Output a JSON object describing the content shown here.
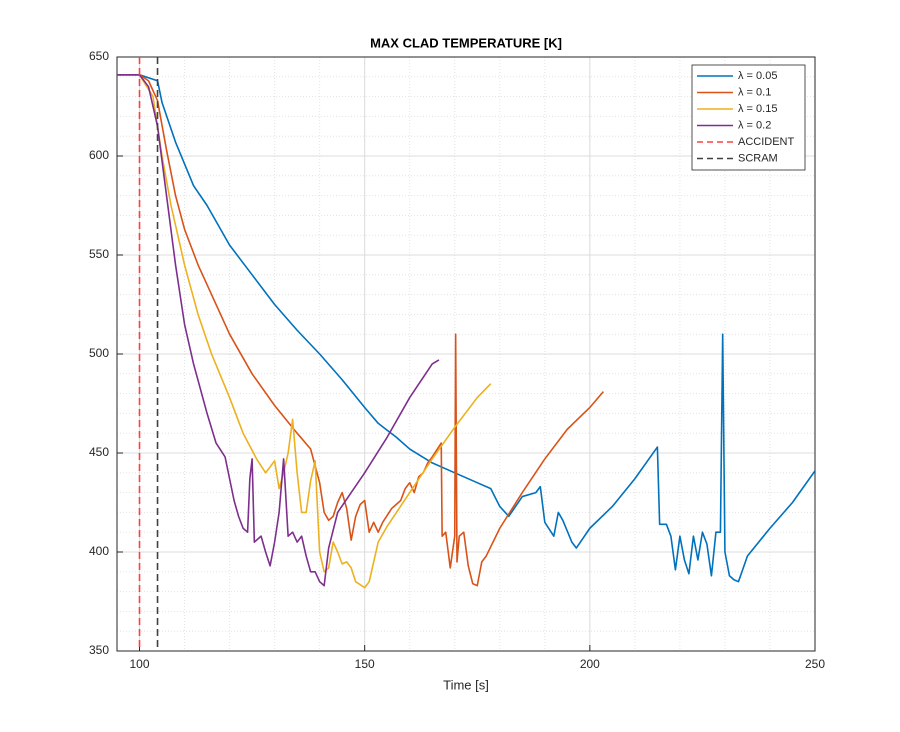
{
  "chart_data": {
    "type": "line",
    "title": "MAX CLAD TEMPERATURE [K]",
    "xlabel": "Time [s]",
    "xlim": [
      95,
      250
    ],
    "xticks": [
      100,
      150,
      200,
      250
    ],
    "ylim": [
      350,
      650
    ],
    "yticks": [
      350,
      400,
      450,
      500,
      550,
      600,
      650
    ],
    "grid": true,
    "minor_grid": true,
    "legend": "top-right",
    "series": [
      {
        "name": "λ = 0.05",
        "color": "#0072bd",
        "x": [
          95,
          100,
          104,
          105,
          108,
          112,
          115,
          120,
          125,
          130,
          135,
          140,
          145,
          150,
          153,
          157,
          160,
          165,
          170,
          175,
          178,
          180,
          182,
          185,
          188,
          189,
          190,
          192,
          193,
          194,
          196,
          197,
          200,
          205,
          210,
          215,
          215.5,
          217,
          218,
          219,
          220,
          221,
          222,
          223,
          224,
          225,
          226,
          227,
          228,
          229,
          229.5,
          230,
          231,
          232,
          233,
          235,
          240,
          245,
          250
        ],
        "values": [
          641,
          641,
          638,
          627,
          607,
          585,
          575,
          555,
          540,
          525,
          512,
          500,
          487,
          473,
          465,
          458,
          452,
          445,
          440,
          435,
          432,
          423,
          418,
          428,
          430,
          433,
          415,
          408,
          420,
          416,
          405,
          402,
          412,
          423,
          437,
          453,
          414,
          414,
          408,
          391,
          408,
          396,
          389,
          408,
          396,
          410,
          404,
          388,
          410,
          410,
          510,
          400,
          388,
          386,
          385,
          398,
          412,
          425,
          441
        ]
      },
      {
        "name": "λ = 0.1",
        "color": "#d95319",
        "x": [
          95,
          100,
          102,
          104,
          106,
          108,
          110,
          113,
          116,
          120,
          125,
          130,
          135,
          138,
          140,
          141,
          142,
          143,
          144,
          145,
          146,
          147,
          148,
          149,
          150,
          151,
          152,
          153,
          154,
          156,
          158,
          159,
          160,
          161,
          162,
          163,
          164,
          165,
          167,
          167.2,
          168,
          169,
          170,
          170.2,
          170.5,
          171,
          172,
          173,
          174,
          175,
          176,
          177,
          180,
          185,
          190,
          195,
          200,
          203
        ],
        "values": [
          641,
          641,
          638,
          628,
          603,
          580,
          563,
          545,
          530,
          510,
          490,
          474,
          460,
          452,
          435,
          420,
          416,
          418,
          425,
          430,
          422,
          406,
          418,
          424,
          426,
          410,
          415,
          410,
          415,
          422,
          426,
          432,
          435,
          430,
          438,
          440,
          445,
          448,
          455,
          408,
          410,
          392,
          408,
          510,
          395,
          408,
          410,
          393,
          384,
          383,
          395,
          398,
          412,
          430,
          447,
          462,
          473,
          481
        ]
      },
      {
        "name": "λ = 0.15",
        "color": "#edb120",
        "x": [
          95,
          100,
          103,
          105,
          107,
          110,
          113,
          116,
          120,
          123,
          126,
          128,
          130,
          131,
          132,
          133,
          134,
          135,
          136,
          137,
          138,
          139,
          140,
          141,
          142,
          143,
          144,
          145,
          146,
          147,
          148,
          150,
          151,
          152,
          153,
          155,
          160,
          165,
          170,
          175,
          178
        ],
        "values": [
          641,
          641,
          630,
          600,
          575,
          545,
          520,
          500,
          478,
          460,
          447,
          440,
          446,
          432,
          440,
          450,
          467,
          440,
          420,
          420,
          436,
          446,
          400,
          390,
          392,
          405,
          400,
          394,
          395,
          392,
          385,
          382,
          385,
          395,
          405,
          413,
          430,
          447,
          463,
          478,
          485
        ]
      },
      {
        "name": "λ = 0.2",
        "color": "#7e2f8e",
        "x": [
          95,
          100,
          102,
          104,
          106,
          108,
          110,
          112,
          115,
          117,
          119,
          120,
          121,
          122,
          123,
          124,
          124.5,
          125,
          125.5,
          127,
          128,
          129,
          130,
          131,
          132,
          133,
          134,
          135,
          136,
          137,
          138,
          139,
          140,
          141,
          142,
          144,
          150,
          155,
          160,
          165,
          166.5
        ],
        "values": [
          641,
          641,
          635,
          615,
          580,
          545,
          515,
          495,
          470,
          455,
          448,
          437,
          426,
          418,
          412,
          410,
          437,
          447,
          405,
          408,
          400,
          393,
          405,
          420,
          447,
          408,
          410,
          405,
          408,
          398,
          390,
          390,
          385,
          383,
          402,
          420,
          440,
          458,
          478,
          495,
          497
        ]
      }
    ],
    "vlines": [
      {
        "name": "ACCIDENT",
        "x": 100,
        "color": "#ff4040"
      },
      {
        "name": "SCRAM",
        "x": 104,
        "color": "#404040"
      }
    ]
  }
}
